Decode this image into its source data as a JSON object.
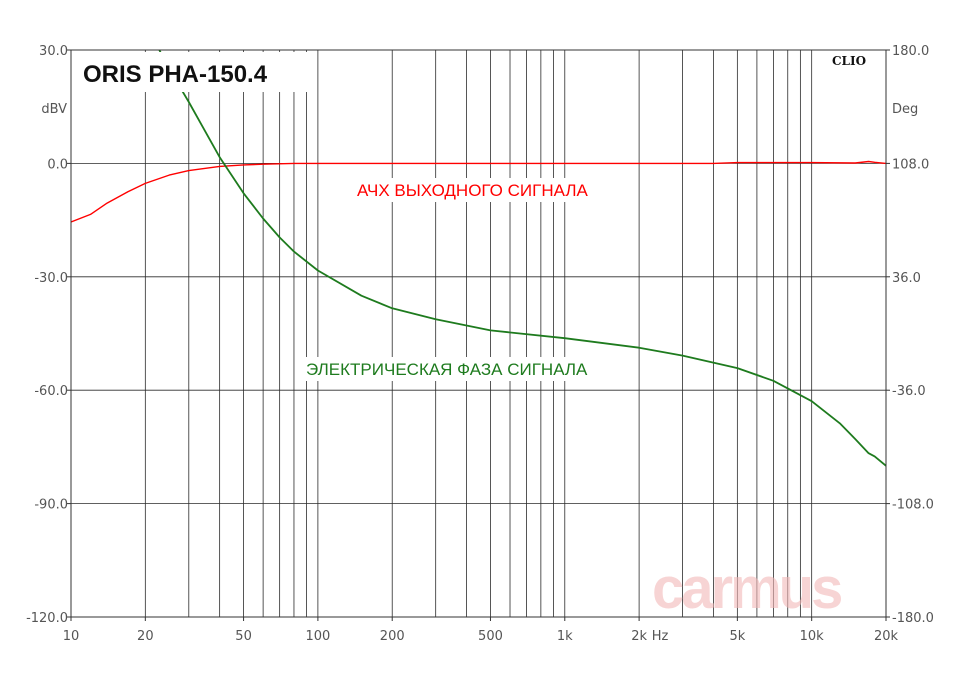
{
  "chart_data": {
    "type": "line",
    "title": "ORIS PHA-150.4",
    "brand": "CLIO",
    "watermark": "carmus",
    "xscale": "log",
    "xlim": [
      10,
      20000
    ],
    "x_unit": "Hz",
    "x_ticks": [
      {
        "v": 10,
        "label": "10"
      },
      {
        "v": 20,
        "label": "20"
      },
      {
        "v": 50,
        "label": "50"
      },
      {
        "v": 100,
        "label": "100"
      },
      {
        "v": 200,
        "label": "200"
      },
      {
        "v": 500,
        "label": "500"
      },
      {
        "v": 1000,
        "label": "1k"
      },
      {
        "v": 2000,
        "label": "2k"
      },
      {
        "v": 5000,
        "label": "5k"
      },
      {
        "v": 10000,
        "label": "10k"
      },
      {
        "v": 20000,
        "label": "20k"
      }
    ],
    "y_left": {
      "unit": "dBV",
      "lim": [
        -120,
        30
      ],
      "ticks": [
        "30.0",
        "0.0",
        "-30.0",
        "-60.0",
        "-90.0",
        "-120.0"
      ]
    },
    "y_right": {
      "unit": "Deg",
      "lim": [
        -180,
        180
      ],
      "ticks": [
        "180.0",
        "108.0",
        "36.0",
        "-36.0",
        "-108.0",
        "-180.0"
      ]
    },
    "grid": true,
    "series": [
      {
        "name": "АЧХ ВЫХОДНОГО СИГНАЛА",
        "axis": "left",
        "color": "#ff0000",
        "points": [
          [
            10,
            -15.5
          ],
          [
            12,
            -13.5
          ],
          [
            14,
            -10.5
          ],
          [
            17,
            -7.5
          ],
          [
            20,
            -5.3
          ],
          [
            25,
            -3.1
          ],
          [
            30,
            -1.9
          ],
          [
            40,
            -0.8
          ],
          [
            50,
            -0.4
          ],
          [
            60,
            -0.2
          ],
          [
            80,
            0
          ],
          [
            100,
            0
          ],
          [
            1000,
            0
          ],
          [
            4000,
            0
          ],
          [
            5000,
            0.2
          ],
          [
            10000,
            0.2
          ],
          [
            15000,
            0.1
          ],
          [
            17000,
            0.5
          ],
          [
            18000,
            0.3
          ],
          [
            20000,
            0
          ]
        ]
      },
      {
        "name": "ЭЛЕКТРИЧЕСКАЯ ФАЗА СИГНАЛА",
        "axis": "right",
        "color": "#1e7b1e",
        "points": [
          [
            16,
            226
          ],
          [
            20,
            197
          ],
          [
            25,
            168
          ],
          [
            30,
            147
          ],
          [
            40,
            112
          ],
          [
            50,
            89
          ],
          [
            60,
            73
          ],
          [
            70,
            61
          ],
          [
            80,
            52
          ],
          [
            100,
            40
          ],
          [
            150,
            24
          ],
          [
            200,
            16
          ],
          [
            300,
            9
          ],
          [
            500,
            2
          ],
          [
            1000,
            -3
          ],
          [
            2000,
            -9
          ],
          [
            3000,
            -14
          ],
          [
            5000,
            -22
          ],
          [
            7000,
            -30
          ],
          [
            10000,
            -43
          ],
          [
            13000,
            -57
          ],
          [
            15000,
            -67
          ],
          [
            17000,
            -76
          ],
          [
            18000,
            -78
          ],
          [
            20000,
            -84
          ]
        ]
      }
    ]
  }
}
